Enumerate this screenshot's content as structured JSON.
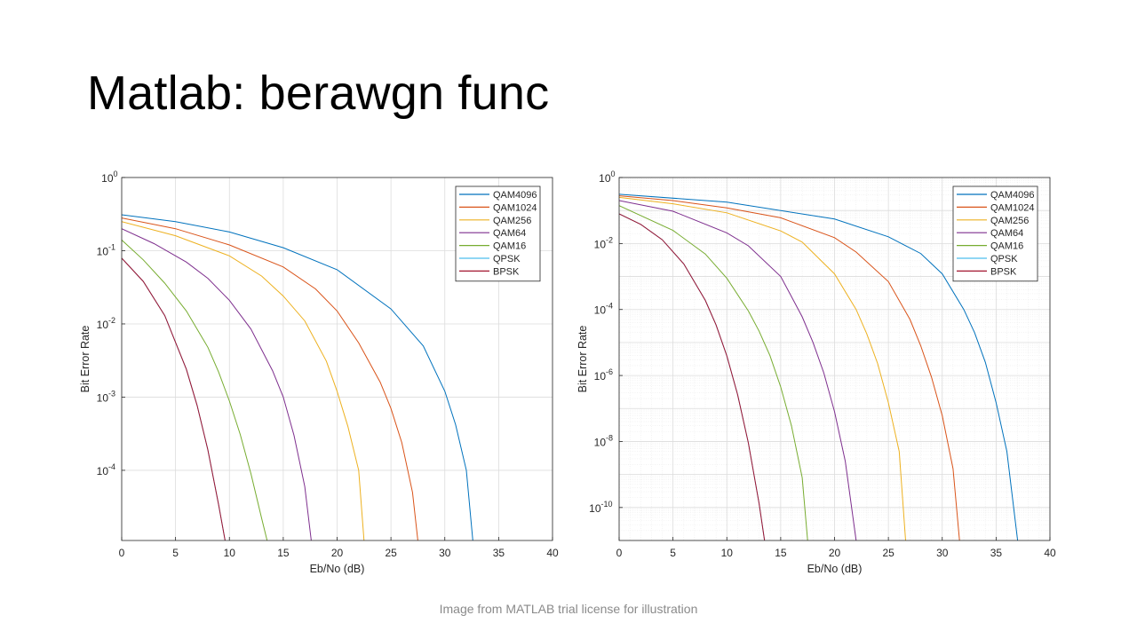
{
  "slide": {
    "title": "Matlab: berawgn func",
    "caption": "Image from MATLAB trial license for illustration"
  },
  "colors": {
    "QAM4096": "#0072BD",
    "QAM1024": "#D95319",
    "QAM256": "#EDB120",
    "QAM64": "#7E2F8E",
    "QAM16": "#77AC30",
    "QPSK": "#4DBEEE",
    "BPSK": "#A2142F"
  },
  "chart_data": [
    {
      "type": "line",
      "xlabel": "Eb/No (dB)",
      "ylabel": "Bit Error Rate",
      "yscale": "log",
      "xlim": [
        0,
        40
      ],
      "ylim": [
        1.1e-05,
        1
      ],
      "xticks": [
        0,
        5,
        10,
        15,
        20,
        25,
        30,
        35,
        40
      ],
      "yticks": [
        {
          "value": 1,
          "base": "10",
          "exp": "0"
        },
        {
          "value": 0.1,
          "base": "10",
          "exp": "-1"
        },
        {
          "value": 0.01,
          "base": "10",
          "exp": "-2"
        },
        {
          "value": 0.001,
          "base": "10",
          "exp": "-3"
        },
        {
          "value": 0.0001,
          "base": "10",
          "exp": "-4"
        }
      ],
      "grid": "major",
      "legend_position": "top-right",
      "series": [
        {
          "name": "QAM4096",
          "x": [
            0,
            5,
            10,
            15,
            20,
            25,
            28,
            30,
            31,
            32,
            32.6
          ],
          "y": [
            0.31,
            0.25,
            0.18,
            0.11,
            0.055,
            0.016,
            0.005,
            0.0012,
            0.00042,
            0.0001,
            1.1e-05
          ]
        },
        {
          "name": "QAM1024",
          "x": [
            0,
            5,
            10,
            15,
            18,
            20,
            22,
            24,
            25,
            26,
            27,
            27.5
          ],
          "y": [
            0.28,
            0.2,
            0.12,
            0.06,
            0.03,
            0.015,
            0.0055,
            0.0016,
            0.0007,
            0.00024,
            5e-05,
            1.1e-05
          ]
        },
        {
          "name": "QAM256",
          "x": [
            0,
            5,
            10,
            13,
            15,
            17,
            19,
            20,
            21,
            22,
            22.5
          ],
          "y": [
            0.25,
            0.16,
            0.085,
            0.045,
            0.024,
            0.011,
            0.0031,
            0.0012,
            0.0004,
            0.0001,
            1.1e-05
          ]
        },
        {
          "name": "QAM64",
          "x": [
            0,
            3,
            6,
            8,
            10,
            12,
            14,
            15,
            16,
            17,
            17.6
          ],
          "y": [
            0.2,
            0.125,
            0.07,
            0.042,
            0.021,
            0.0085,
            0.0023,
            0.001,
            0.0003,
            6e-05,
            1.1e-05
          ]
        },
        {
          "name": "QAM16",
          "x": [
            0,
            2,
            4,
            6,
            8,
            9,
            10,
            11,
            12,
            13,
            13.5
          ],
          "y": [
            0.14,
            0.075,
            0.036,
            0.015,
            0.0048,
            0.0022,
            0.00088,
            0.00031,
            9e-05,
            2.2e-05,
            1.1e-05
          ]
        },
        {
          "name": "QPSK",
          "x": [
            0,
            2,
            4,
            6,
            7,
            8,
            9,
            9.6
          ],
          "y": [
            0.079,
            0.038,
            0.013,
            0.0024,
            0.00077,
            0.00019,
            3.4e-05,
            1.1e-05
          ]
        },
        {
          "name": "BPSK",
          "x": [
            0,
            2,
            4,
            6,
            7,
            8,
            9,
            9.6
          ],
          "y": [
            0.079,
            0.038,
            0.013,
            0.0024,
            0.00077,
            0.00019,
            3.4e-05,
            1.1e-05
          ]
        }
      ]
    },
    {
      "type": "line",
      "xlabel": "Eb/No (dB)",
      "ylabel": "Bit Error Rate",
      "yscale": "log",
      "xlim": [
        0,
        40
      ],
      "ylim": [
        1e-11,
        1
      ],
      "xticks": [
        0,
        5,
        10,
        15,
        20,
        25,
        30,
        35,
        40
      ],
      "yticks": [
        {
          "value": 1,
          "base": "10",
          "exp": "0"
        },
        {
          "value": 0.01,
          "base": "10",
          "exp": "-2"
        },
        {
          "value": 0.0001,
          "base": "10",
          "exp": "-4"
        },
        {
          "value": 1e-06,
          "base": "10",
          "exp": "-6"
        },
        {
          "value": 1e-08,
          "base": "10",
          "exp": "-8"
        },
        {
          "value": 1e-10,
          "base": "10",
          "exp": "-10"
        }
      ],
      "grid": "major+minor",
      "legend_position": "top-right",
      "series": [
        {
          "name": "QAM4096",
          "x": [
            0,
            10,
            20,
            25,
            28,
            30,
            32,
            33,
            34,
            35,
            36,
            37
          ],
          "y": [
            0.31,
            0.18,
            0.055,
            0.016,
            0.005,
            0.0012,
            0.0001,
            2e-05,
            2.5e-06,
            1.5e-07,
            5e-09,
            1e-11
          ]
        },
        {
          "name": "QAM1024",
          "x": [
            0,
            5,
            10,
            15,
            20,
            22,
            25,
            27,
            28,
            29,
            30,
            31,
            31.6
          ],
          "y": [
            0.28,
            0.2,
            0.12,
            0.06,
            0.015,
            0.0055,
            0.0007,
            5e-05,
            8e-06,
            9e-07,
            6e-08,
            1.5e-09,
            1e-11
          ]
        },
        {
          "name": "QAM256",
          "x": [
            0,
            5,
            10,
            15,
            17,
            20,
            22,
            23,
            24,
            25,
            26,
            26.6
          ],
          "y": [
            0.25,
            0.16,
            0.085,
            0.024,
            0.011,
            0.0012,
            0.0001,
            1.8e-05,
            2.3e-06,
            1.5e-07,
            5e-09,
            1e-11
          ]
        },
        {
          "name": "QAM64",
          "x": [
            0,
            5,
            10,
            12,
            15,
            17,
            18,
            19,
            20,
            21,
            22
          ],
          "y": [
            0.2,
            0.095,
            0.021,
            0.0085,
            0.001,
            6e-05,
            1e-05,
            1.2e-06,
            8e-08,
            2.5e-09,
            1e-11
          ]
        },
        {
          "name": "QAM16",
          "x": [
            0,
            5,
            8,
            10,
            12,
            13,
            14,
            15,
            16,
            17,
            17.5
          ],
          "y": [
            0.14,
            0.025,
            0.0048,
            0.00088,
            9e-05,
            2.2e-05,
            4e-06,
            4.5e-07,
            3e-08,
            8e-10,
            1e-11
          ]
        },
        {
          "name": "QPSK",
          "x": [
            0,
            2,
            4,
            6,
            8,
            9,
            10,
            11,
            12,
            13,
            13.5
          ],
          "y": [
            0.079,
            0.038,
            0.013,
            0.0024,
            0.00019,
            3.4e-05,
            3.9e-06,
            2.6e-07,
            9e-09,
            1.3e-10,
            1e-11
          ]
        },
        {
          "name": "BPSK",
          "x": [
            0,
            2,
            4,
            6,
            8,
            9,
            10,
            11,
            12,
            13,
            13.5
          ],
          "y": [
            0.079,
            0.038,
            0.013,
            0.0024,
            0.00019,
            3.4e-05,
            3.9e-06,
            2.6e-07,
            9e-09,
            1.3e-10,
            1e-11
          ]
        }
      ]
    }
  ]
}
